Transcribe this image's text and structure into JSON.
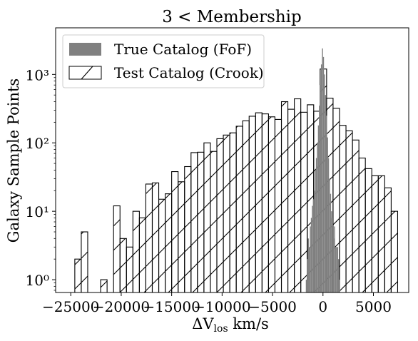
{
  "chart_data": {
    "type": "bar",
    "title": "3 < Membership",
    "xlabel": "ΔV_los km/s",
    "ylabel": "Galaxy Sample Points",
    "yscale": "log",
    "xlim": [
      -26500,
      8500
    ],
    "ylim": [
      0.65,
      4800
    ],
    "xticks": [
      -25000,
      -20000,
      -15000,
      -10000,
      -5000,
      0,
      5000
    ],
    "xtick_labels": [
      "−25000",
      "−20000",
      "−15000",
      "−10000",
      "−5000",
      "0",
      "5000"
    ],
    "yticks": [
      1,
      10,
      100,
      1000
    ],
    "ytick_labels": [
      "10⁰",
      "10¹",
      "10²",
      "10³"
    ],
    "legend": {
      "placement": "upper-left",
      "entries": [
        {
          "label": "True Catalog (FoF)",
          "style": "solid",
          "color": "#808080"
        },
        {
          "label": "Test Catalog (Crook)",
          "style": "hatched",
          "color": "#000000"
        }
      ]
    },
    "series": [
      {
        "name": "Test Catalog (Crook)",
        "style": "hatched",
        "bin_width": 640,
        "bin_starts": [
          -24600,
          -23960,
          -23320,
          -22680,
          -22040,
          -21400,
          -20760,
          -20120,
          -19480,
          -18840,
          -18200,
          -17560,
          -16920,
          -16280,
          -15640,
          -15000,
          -14360,
          -13720,
          -13080,
          -12440,
          -11800,
          -11160,
          -10520,
          -9880,
          -9240,
          -8600,
          -7960,
          -7320,
          -6680,
          -6040,
          -5400,
          -4760,
          -4120,
          -3480,
          -2840,
          -2200,
          -1560,
          -920,
          -280,
          360,
          1000,
          1640,
          2280,
          2920,
          3560,
          4200,
          4840,
          5480,
          6120,
          6760
        ],
        "values": [
          2,
          5,
          0,
          0,
          1,
          0,
          12,
          4,
          3,
          10,
          8,
          25,
          26,
          15,
          18,
          38,
          27,
          45,
          72,
          73,
          100,
          75,
          115,
          130,
          140,
          175,
          210,
          245,
          275,
          265,
          240,
          220,
          400,
          310,
          440,
          280,
          360,
          290,
          1200,
          450,
          320,
          180,
          150,
          110,
          60,
          42,
          33,
          33,
          22,
          10
        ]
      },
      {
        "name": "True Catalog (FoF)",
        "style": "solid",
        "color": "#808080",
        "bin_width": 100,
        "bin_starts": [
          -1700,
          -1600,
          -1500,
          -1400,
          -1300,
          -1200,
          -1100,
          -1000,
          -900,
          -800,
          -700,
          -600,
          -500,
          -400,
          -300,
          -200,
          -100,
          0,
          100,
          200,
          300,
          400,
          500,
          600,
          700,
          800,
          900,
          1000,
          1100,
          1200,
          1300,
          1400,
          1500,
          1600
        ],
        "values": [
          1,
          2,
          4,
          3,
          6,
          8,
          12,
          15,
          20,
          40,
          60,
          100,
          180,
          350,
          700,
          1400,
          2400,
          1800,
          1000,
          500,
          250,
          120,
          60,
          30,
          18,
          10,
          8,
          4,
          6,
          3,
          3,
          3,
          2,
          1
        ]
      }
    ]
  }
}
